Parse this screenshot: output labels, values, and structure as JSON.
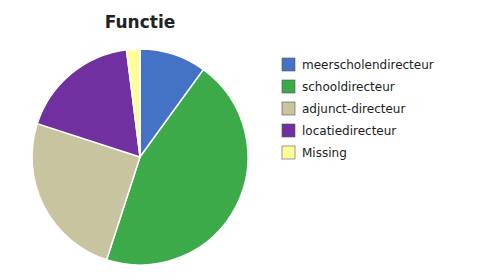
{
  "chart_data": {
    "type": "pie",
    "title": "Functie",
    "categories": [
      "meerscholendirecteur",
      "schooldirecteur",
      "adjunct-directeur",
      "locatiedirecteur",
      "Missing"
    ],
    "values": [
      10,
      45,
      25,
      18,
      2
    ],
    "colors": [
      "#4472C4",
      "#3DAA4A",
      "#C8C4A0",
      "#7030A0",
      "#FFFF99"
    ],
    "legend": "right"
  }
}
